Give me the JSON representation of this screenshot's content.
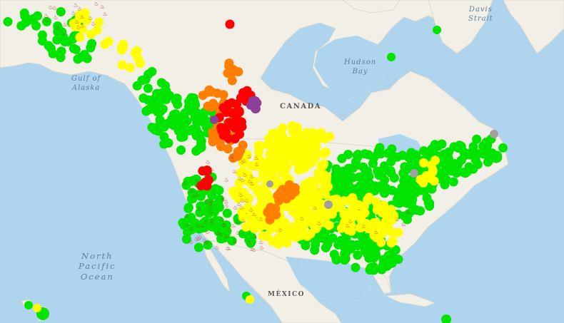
{
  "map": {
    "labels": {
      "gulf_of_alaska": "Gulf of\nAlaska",
      "hudson_bay": "Hudson\nBay",
      "davis_strait": "Davis\nStrait",
      "north_pacific": "North\nPacific\nOcean",
      "canada": "CANADA",
      "mexico": "MÉXICO"
    },
    "aqi_colors": {
      "good": "#00e400",
      "moderate": "#ffff00",
      "unhealthy_sensitive": "#ff7e00",
      "unhealthy": "#ff0000",
      "very_unhealthy": "#8f3f97",
      "no_data": "#a0a0a0"
    },
    "fire_icon": "fire-icon"
  }
}
